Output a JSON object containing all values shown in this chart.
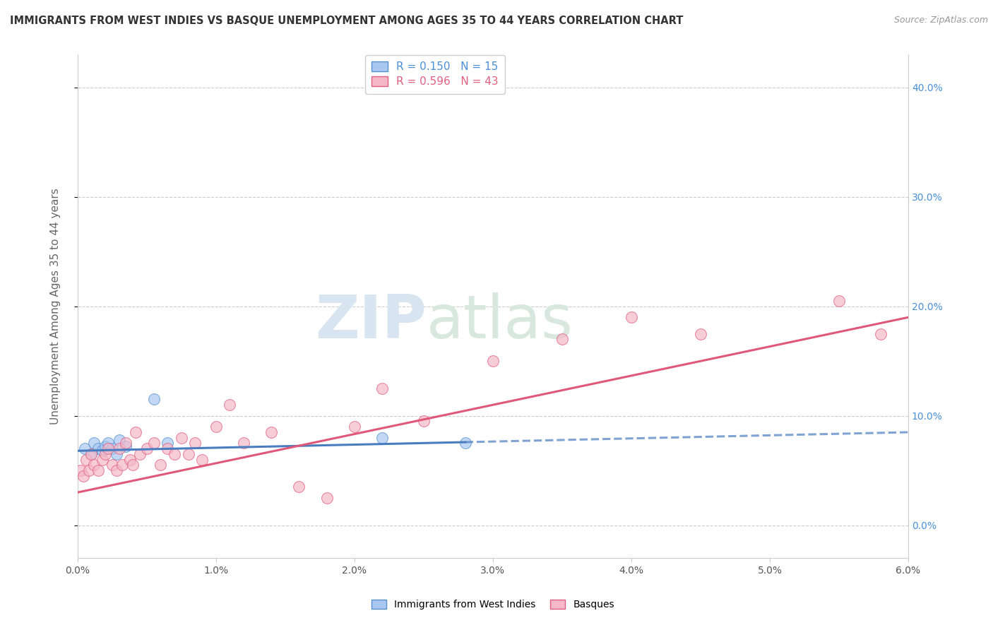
{
  "title": "IMMIGRANTS FROM WEST INDIES VS BASQUE UNEMPLOYMENT AMONG AGES 35 TO 44 YEARS CORRELATION CHART",
  "source": "Source: ZipAtlas.com",
  "ylabel": "Unemployment Among Ages 35 to 44 years",
  "legend_label1": "Immigrants from West Indies",
  "legend_label2": "Basques",
  "r1": "0.150",
  "n1": "15",
  "r2": "0.596",
  "n2": "43",
  "color_blue_fill": "#A8C8F0",
  "color_pink_fill": "#F5B8C8",
  "color_blue_edge": "#5590D0",
  "color_pink_edge": "#E06080",
  "color_blue_line": "#4A7CC0",
  "color_pink_line": "#E05878",
  "color_blue_text": "#4A90D9",
  "color_pink_text": "#E06080",
  "xlim": [
    0.0,
    6.0
  ],
  "ylim": [
    -3.0,
    43.0
  ],
  "yticks": [
    0.0,
    10.0,
    20.0,
    30.0,
    40.0
  ],
  "xticks": [
    0.0,
    1.0,
    2.0,
    3.0,
    4.0,
    5.0,
    6.0
  ],
  "blue_points_x": [
    0.05,
    0.1,
    0.12,
    0.15,
    0.18,
    0.2,
    0.22,
    0.25,
    0.28,
    0.3,
    0.35,
    0.55,
    0.65,
    2.2,
    2.8
  ],
  "blue_points_y": [
    7.0,
    6.5,
    7.5,
    7.0,
    6.8,
    7.2,
    7.5,
    7.0,
    6.5,
    7.8,
    7.2,
    11.5,
    7.5,
    8.0,
    7.5
  ],
  "pink_points_x": [
    0.02,
    0.04,
    0.06,
    0.08,
    0.1,
    0.12,
    0.15,
    0.18,
    0.2,
    0.22,
    0.25,
    0.28,
    0.3,
    0.32,
    0.35,
    0.38,
    0.4,
    0.42,
    0.45,
    0.5,
    0.55,
    0.6,
    0.65,
    0.7,
    0.75,
    0.8,
    0.85,
    0.9,
    1.0,
    1.1,
    1.2,
    1.4,
    1.6,
    1.8,
    2.0,
    2.2,
    2.5,
    3.0,
    3.5,
    4.0,
    4.5,
    5.5,
    5.8
  ],
  "pink_points_y": [
    5.0,
    4.5,
    6.0,
    5.0,
    6.5,
    5.5,
    5.0,
    6.0,
    6.5,
    7.0,
    5.5,
    5.0,
    7.0,
    5.5,
    7.5,
    6.0,
    5.5,
    8.5,
    6.5,
    7.0,
    7.5,
    5.5,
    7.0,
    6.5,
    8.0,
    6.5,
    7.5,
    6.0,
    9.0,
    11.0,
    7.5,
    8.5,
    3.5,
    2.5,
    9.0,
    12.5,
    9.5,
    15.0,
    17.0,
    19.0,
    17.5,
    20.5,
    17.5
  ],
  "blue_line_x0": 0.0,
  "blue_line_y0": 6.8,
  "blue_line_x1": 6.0,
  "blue_line_y1": 8.5,
  "pink_line_x0": 0.0,
  "pink_line_y0": 3.0,
  "pink_line_x1": 6.0,
  "pink_line_y1": 19.0,
  "watermark_zip": "ZIP",
  "watermark_atlas": "atlas",
  "background_color": "#FFFFFF"
}
